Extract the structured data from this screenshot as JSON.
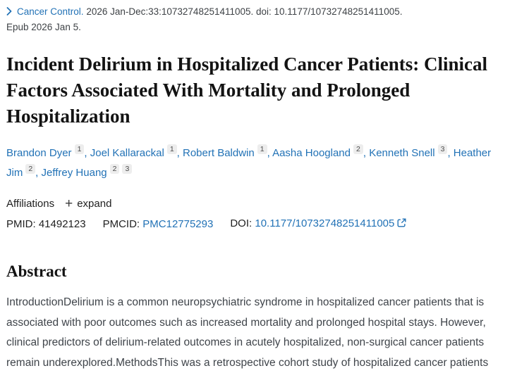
{
  "colors": {
    "link_blue": "#2272b6",
    "text_dark": "#212121",
    "text_gray": "#3e4246",
    "badge_bg": "#ededed"
  },
  "journal": {
    "name": "Cancer Control.",
    "citation": "2026 Jan-Dec:33:10732748251411005. doi: 10.1177/10732748251411005.",
    "epub": "Epub 2026 Jan 5."
  },
  "title": "Incident Delirium in Hospitalized Cancer Patients: Clinical Factors Associated With Mortality and Prolonged Hospitalization",
  "authors": [
    {
      "name": "Brandon Dyer",
      "sups": [
        "1"
      ]
    },
    {
      "name": "Joel Kallarackal",
      "sups": [
        "1"
      ]
    },
    {
      "name": "Robert Baldwin",
      "sups": [
        "1"
      ]
    },
    {
      "name": "Aasha Hoogland",
      "sups": [
        "2"
      ]
    },
    {
      "name": "Kenneth Snell",
      "sups": [
        "3"
      ]
    },
    {
      "name": "Heather Jim",
      "sups": [
        "2"
      ]
    },
    {
      "name": "Jeffrey Huang",
      "sups": [
        "2",
        "3"
      ]
    }
  ],
  "affiliations": {
    "label": "Affiliations",
    "plus_icon": "+",
    "expand_label": "expand"
  },
  "identifiers": {
    "pmid_label": "PMID:",
    "pmid": "41492123",
    "pmcid_label": "PMCID:",
    "pmcid": "PMC12775293",
    "doi_label": "DOI:",
    "doi": "10.1177/10732748251411005"
  },
  "abstract": {
    "heading": "Abstract",
    "text": "IntroductionDelirium is a common neuropsychiatric syndrome in hospitalized cancer patients that is associated with poor outcomes such as increased mortality and prolonged hospital stays. However, clinical predictors of delirium-related outcomes in acutely hospitalized, non-surgical cancer patients remain underexplored.MethodsThis was a retrospective cohort study of hospitalized cancer patients"
  }
}
